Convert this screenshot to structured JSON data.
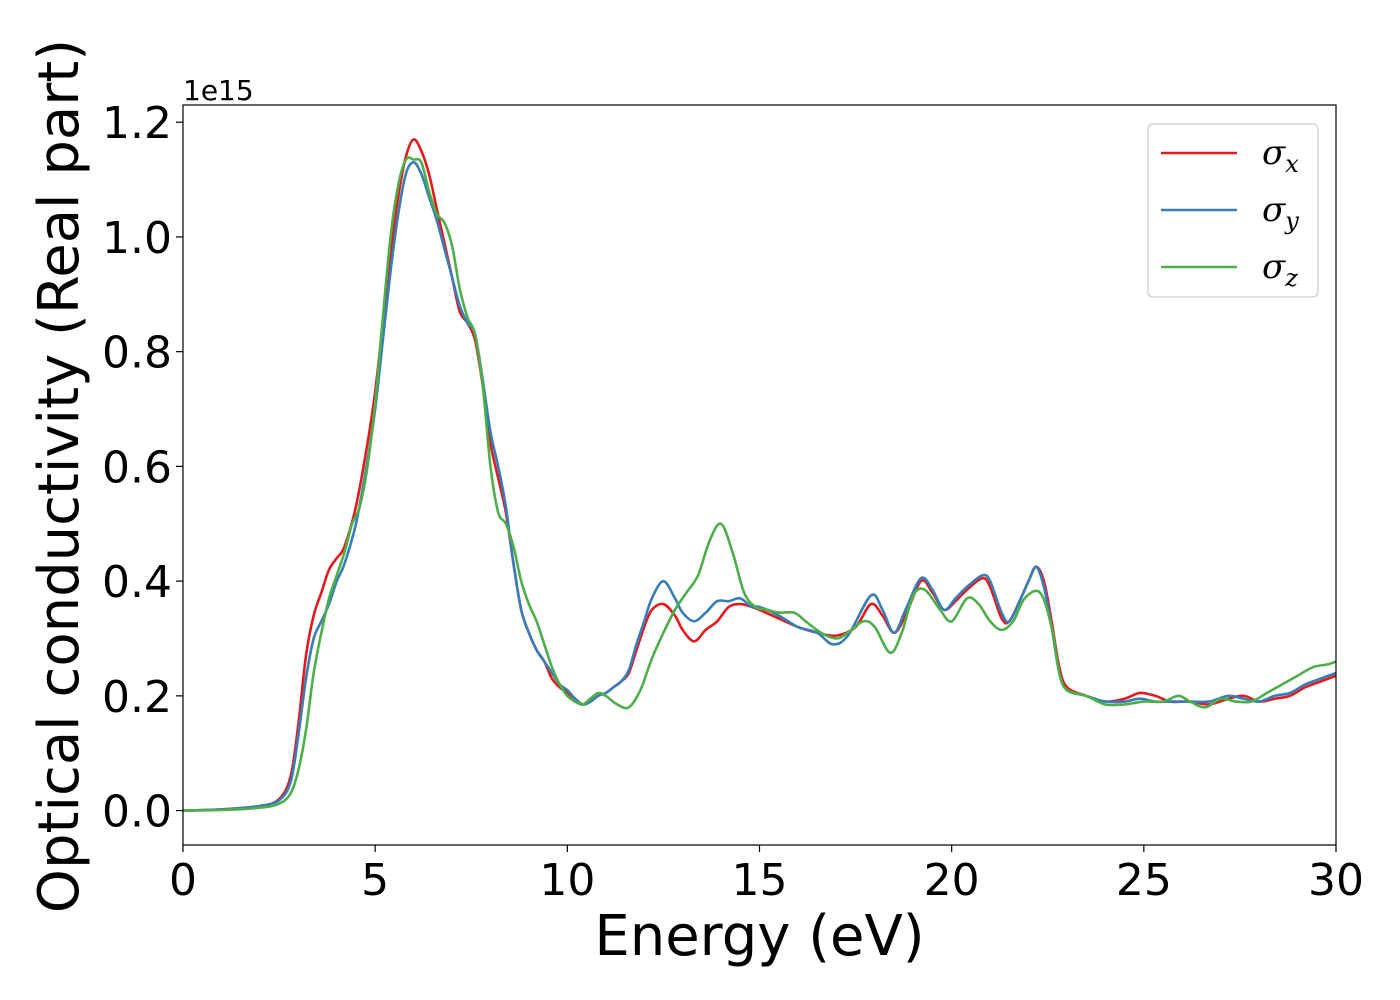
{
  "chart_data": {
    "type": "line",
    "xlabel": "Energy (eV)",
    "ylabel": "Optical conductivity (Real part)",
    "y_offset_text": "1e15",
    "xlim": [
      0,
      30
    ],
    "ylim": [
      -0.06,
      1.23
    ],
    "x_ticks": [
      0,
      5,
      10,
      15,
      20,
      25,
      30
    ],
    "x_tick_labels": [
      "0",
      "5",
      "10",
      "15",
      "20",
      "25",
      "30"
    ],
    "y_ticks": [
      0.0,
      0.2,
      0.4,
      0.6,
      0.8,
      1.0,
      1.2
    ],
    "y_tick_labels": [
      "0.0",
      "0.2",
      "0.4",
      "0.6",
      "0.8",
      "1.0",
      "1.2"
    ],
    "grid": false,
    "legend_position": "top-right",
    "series": [
      {
        "name": "σx",
        "symbol": "σ",
        "subscript": "x",
        "color": "#e41a1c",
        "points": [
          [
            0,
            0.0
          ],
          [
            1,
            0.002
          ],
          [
            2,
            0.008
          ],
          [
            2.5,
            0.02
          ],
          [
            2.8,
            0.06
          ],
          [
            3.0,
            0.15
          ],
          [
            3.2,
            0.27
          ],
          [
            3.4,
            0.34
          ],
          [
            3.6,
            0.38
          ],
          [
            3.8,
            0.42
          ],
          [
            4.0,
            0.44
          ],
          [
            4.2,
            0.46
          ],
          [
            4.5,
            0.53
          ],
          [
            4.8,
            0.64
          ],
          [
            5.0,
            0.73
          ],
          [
            5.2,
            0.85
          ],
          [
            5.4,
            0.97
          ],
          [
            5.6,
            1.07
          ],
          [
            5.8,
            1.14
          ],
          [
            6.0,
            1.17
          ],
          [
            6.2,
            1.15
          ],
          [
            6.4,
            1.11
          ],
          [
            6.6,
            1.05
          ],
          [
            6.8,
            0.99
          ],
          [
            7.0,
            0.93
          ],
          [
            7.2,
            0.87
          ],
          [
            7.4,
            0.85
          ],
          [
            7.6,
            0.82
          ],
          [
            7.8,
            0.74
          ],
          [
            8.0,
            0.64
          ],
          [
            8.2,
            0.58
          ],
          [
            8.4,
            0.52
          ],
          [
            8.6,
            0.43
          ],
          [
            8.8,
            0.35
          ],
          [
            9.0,
            0.31
          ],
          [
            9.2,
            0.28
          ],
          [
            9.4,
            0.26
          ],
          [
            9.6,
            0.23
          ],
          [
            9.8,
            0.215
          ],
          [
            10.0,
            0.205
          ],
          [
            10.2,
            0.195
          ],
          [
            10.4,
            0.185
          ],
          [
            10.6,
            0.19
          ],
          [
            10.8,
            0.2
          ],
          [
            11.0,
            0.205
          ],
          [
            11.2,
            0.215
          ],
          [
            11.4,
            0.225
          ],
          [
            11.6,
            0.24
          ],
          [
            11.8,
            0.28
          ],
          [
            12.0,
            0.32
          ],
          [
            12.2,
            0.35
          ],
          [
            12.5,
            0.36
          ],
          [
            12.8,
            0.34
          ],
          [
            13.0,
            0.315
          ],
          [
            13.3,
            0.295
          ],
          [
            13.6,
            0.315
          ],
          [
            13.9,
            0.33
          ],
          [
            14.2,
            0.355
          ],
          [
            14.5,
            0.36
          ],
          [
            14.8,
            0.355
          ],
          [
            15.0,
            0.35
          ],
          [
            15.5,
            0.335
          ],
          [
            16.0,
            0.32
          ],
          [
            16.5,
            0.31
          ],
          [
            17.0,
            0.305
          ],
          [
            17.5,
            0.32
          ],
          [
            17.9,
            0.36
          ],
          [
            18.2,
            0.34
          ],
          [
            18.5,
            0.31
          ],
          [
            18.8,
            0.34
          ],
          [
            19.2,
            0.4
          ],
          [
            19.5,
            0.38
          ],
          [
            19.8,
            0.35
          ],
          [
            20.1,
            0.365
          ],
          [
            20.4,
            0.385
          ],
          [
            20.8,
            0.405
          ],
          [
            21.0,
            0.39
          ],
          [
            21.3,
            0.335
          ],
          [
            21.5,
            0.33
          ],
          [
            21.8,
            0.37
          ],
          [
            22.0,
            0.4
          ],
          [
            22.2,
            0.425
          ],
          [
            22.4,
            0.4
          ],
          [
            22.6,
            0.33
          ],
          [
            22.8,
            0.25
          ],
          [
            23.0,
            0.215
          ],
          [
            23.5,
            0.2
          ],
          [
            24.0,
            0.19
          ],
          [
            24.5,
            0.195
          ],
          [
            24.9,
            0.205
          ],
          [
            25.3,
            0.2
          ],
          [
            25.7,
            0.19
          ],
          [
            26.2,
            0.19
          ],
          [
            26.7,
            0.185
          ],
          [
            27.2,
            0.195
          ],
          [
            27.6,
            0.2
          ],
          [
            28.0,
            0.19
          ],
          [
            28.4,
            0.195
          ],
          [
            28.8,
            0.2
          ],
          [
            29.2,
            0.215
          ],
          [
            29.6,
            0.225
          ],
          [
            30.0,
            0.235
          ]
        ]
      },
      {
        "name": "σy",
        "symbol": "σ",
        "subscript": "y",
        "color": "#377eb8",
        "points": [
          [
            0,
            0.0
          ],
          [
            1,
            0.002
          ],
          [
            2,
            0.008
          ],
          [
            2.5,
            0.018
          ],
          [
            2.8,
            0.05
          ],
          [
            3.0,
            0.13
          ],
          [
            3.2,
            0.23
          ],
          [
            3.4,
            0.3
          ],
          [
            3.6,
            0.33
          ],
          [
            3.8,
            0.36
          ],
          [
            4.0,
            0.4
          ],
          [
            4.2,
            0.43
          ],
          [
            4.5,
            0.5
          ],
          [
            4.8,
            0.61
          ],
          [
            5.0,
            0.7
          ],
          [
            5.2,
            0.82
          ],
          [
            5.4,
            0.94
          ],
          [
            5.6,
            1.04
          ],
          [
            5.8,
            1.11
          ],
          [
            6.0,
            1.13
          ],
          [
            6.2,
            1.11
          ],
          [
            6.4,
            1.07
          ],
          [
            6.6,
            1.03
          ],
          [
            6.8,
            0.98
          ],
          [
            7.0,
            0.93
          ],
          [
            7.2,
            0.88
          ],
          [
            7.4,
            0.85
          ],
          [
            7.6,
            0.83
          ],
          [
            7.8,
            0.75
          ],
          [
            8.0,
            0.66
          ],
          [
            8.2,
            0.6
          ],
          [
            8.4,
            0.53
          ],
          [
            8.6,
            0.43
          ],
          [
            8.8,
            0.35
          ],
          [
            9.0,
            0.31
          ],
          [
            9.2,
            0.28
          ],
          [
            9.4,
            0.26
          ],
          [
            9.6,
            0.24
          ],
          [
            9.8,
            0.22
          ],
          [
            10.0,
            0.21
          ],
          [
            10.2,
            0.195
          ],
          [
            10.4,
            0.185
          ],
          [
            10.6,
            0.19
          ],
          [
            10.8,
            0.2
          ],
          [
            11.0,
            0.205
          ],
          [
            11.2,
            0.215
          ],
          [
            11.4,
            0.225
          ],
          [
            11.6,
            0.245
          ],
          [
            11.8,
            0.29
          ],
          [
            12.0,
            0.33
          ],
          [
            12.2,
            0.37
          ],
          [
            12.5,
            0.4
          ],
          [
            12.8,
            0.37
          ],
          [
            13.0,
            0.345
          ],
          [
            13.3,
            0.33
          ],
          [
            13.6,
            0.345
          ],
          [
            13.9,
            0.365
          ],
          [
            14.2,
            0.365
          ],
          [
            14.5,
            0.37
          ],
          [
            14.8,
            0.355
          ],
          [
            15.0,
            0.355
          ],
          [
            15.5,
            0.34
          ],
          [
            16.0,
            0.32
          ],
          [
            16.5,
            0.31
          ],
          [
            16.9,
            0.29
          ],
          [
            17.3,
            0.305
          ],
          [
            17.9,
            0.375
          ],
          [
            18.2,
            0.35
          ],
          [
            18.5,
            0.31
          ],
          [
            18.8,
            0.35
          ],
          [
            19.2,
            0.405
          ],
          [
            19.5,
            0.385
          ],
          [
            19.8,
            0.35
          ],
          [
            20.1,
            0.37
          ],
          [
            20.4,
            0.39
          ],
          [
            20.8,
            0.41
          ],
          [
            21.0,
            0.4
          ],
          [
            21.3,
            0.345
          ],
          [
            21.5,
            0.33
          ],
          [
            21.8,
            0.37
          ],
          [
            22.0,
            0.4
          ],
          [
            22.2,
            0.425
          ],
          [
            22.4,
            0.39
          ],
          [
            22.6,
            0.32
          ],
          [
            22.8,
            0.24
          ],
          [
            23.0,
            0.21
          ],
          [
            23.5,
            0.2
          ],
          [
            24.0,
            0.19
          ],
          [
            24.5,
            0.19
          ],
          [
            24.9,
            0.195
          ],
          [
            25.3,
            0.19
          ],
          [
            25.7,
            0.19
          ],
          [
            26.2,
            0.19
          ],
          [
            26.7,
            0.19
          ],
          [
            27.2,
            0.2
          ],
          [
            27.6,
            0.195
          ],
          [
            28.0,
            0.19
          ],
          [
            28.4,
            0.2
          ],
          [
            28.8,
            0.205
          ],
          [
            29.2,
            0.22
          ],
          [
            29.6,
            0.23
          ],
          [
            30.0,
            0.24
          ]
        ]
      },
      {
        "name": "σz",
        "symbol": "σ",
        "subscript": "z",
        "color": "#4daf4a",
        "points": [
          [
            0,
            0.0
          ],
          [
            1,
            0.001
          ],
          [
            2,
            0.005
          ],
          [
            2.5,
            0.012
          ],
          [
            2.8,
            0.03
          ],
          [
            3.0,
            0.07
          ],
          [
            3.2,
            0.14
          ],
          [
            3.4,
            0.24
          ],
          [
            3.6,
            0.31
          ],
          [
            3.8,
            0.37
          ],
          [
            4.0,
            0.41
          ],
          [
            4.2,
            0.45
          ],
          [
            4.4,
            0.5
          ],
          [
            4.6,
            0.53
          ],
          [
            4.8,
            0.6
          ],
          [
            5.0,
            0.71
          ],
          [
            5.2,
            0.86
          ],
          [
            5.4,
            1.0
          ],
          [
            5.6,
            1.09
          ],
          [
            5.8,
            1.135
          ],
          [
            6.0,
            1.135
          ],
          [
            6.2,
            1.13
          ],
          [
            6.4,
            1.08
          ],
          [
            6.6,
            1.04
          ],
          [
            6.8,
            1.025
          ],
          [
            7.0,
            0.985
          ],
          [
            7.2,
            0.91
          ],
          [
            7.4,
            0.86
          ],
          [
            7.6,
            0.83
          ],
          [
            7.8,
            0.74
          ],
          [
            8.0,
            0.6
          ],
          [
            8.2,
            0.52
          ],
          [
            8.4,
            0.5
          ],
          [
            8.6,
            0.46
          ],
          [
            8.8,
            0.4
          ],
          [
            9.0,
            0.36
          ],
          [
            9.2,
            0.33
          ],
          [
            9.4,
            0.29
          ],
          [
            9.6,
            0.25
          ],
          [
            9.8,
            0.22
          ],
          [
            10.0,
            0.2
          ],
          [
            10.2,
            0.19
          ],
          [
            10.4,
            0.185
          ],
          [
            10.6,
            0.195
          ],
          [
            10.8,
            0.205
          ],
          [
            11.0,
            0.2
          ],
          [
            11.3,
            0.185
          ],
          [
            11.6,
            0.18
          ],
          [
            11.9,
            0.21
          ],
          [
            12.2,
            0.265
          ],
          [
            12.5,
            0.31
          ],
          [
            12.8,
            0.35
          ],
          [
            13.1,
            0.38
          ],
          [
            13.4,
            0.41
          ],
          [
            13.7,
            0.47
          ],
          [
            14.0,
            0.5
          ],
          [
            14.3,
            0.45
          ],
          [
            14.6,
            0.38
          ],
          [
            14.9,
            0.355
          ],
          [
            15.2,
            0.35
          ],
          [
            15.5,
            0.345
          ],
          [
            15.9,
            0.345
          ],
          [
            16.2,
            0.33
          ],
          [
            16.6,
            0.31
          ],
          [
            17.0,
            0.3
          ],
          [
            17.3,
            0.31
          ],
          [
            17.7,
            0.33
          ],
          [
            18.0,
            0.32
          ],
          [
            18.4,
            0.275
          ],
          [
            18.7,
            0.31
          ],
          [
            19.0,
            0.375
          ],
          [
            19.3,
            0.385
          ],
          [
            19.7,
            0.35
          ],
          [
            20.0,
            0.33
          ],
          [
            20.4,
            0.37
          ],
          [
            20.7,
            0.36
          ],
          [
            21.0,
            0.33
          ],
          [
            21.3,
            0.315
          ],
          [
            21.6,
            0.33
          ],
          [
            21.9,
            0.37
          ],
          [
            22.3,
            0.38
          ],
          [
            22.6,
            0.32
          ],
          [
            22.8,
            0.24
          ],
          [
            23.0,
            0.21
          ],
          [
            23.5,
            0.2
          ],
          [
            24.0,
            0.185
          ],
          [
            24.5,
            0.185
          ],
          [
            25.0,
            0.19
          ],
          [
            25.5,
            0.19
          ],
          [
            25.9,
            0.2
          ],
          [
            26.2,
            0.19
          ],
          [
            26.6,
            0.18
          ],
          [
            27.0,
            0.195
          ],
          [
            27.4,
            0.19
          ],
          [
            27.8,
            0.19
          ],
          [
            28.2,
            0.205
          ],
          [
            28.6,
            0.22
          ],
          [
            29.0,
            0.235
          ],
          [
            29.4,
            0.25
          ],
          [
            29.8,
            0.255
          ],
          [
            30.0,
            0.26
          ]
        ]
      }
    ]
  }
}
